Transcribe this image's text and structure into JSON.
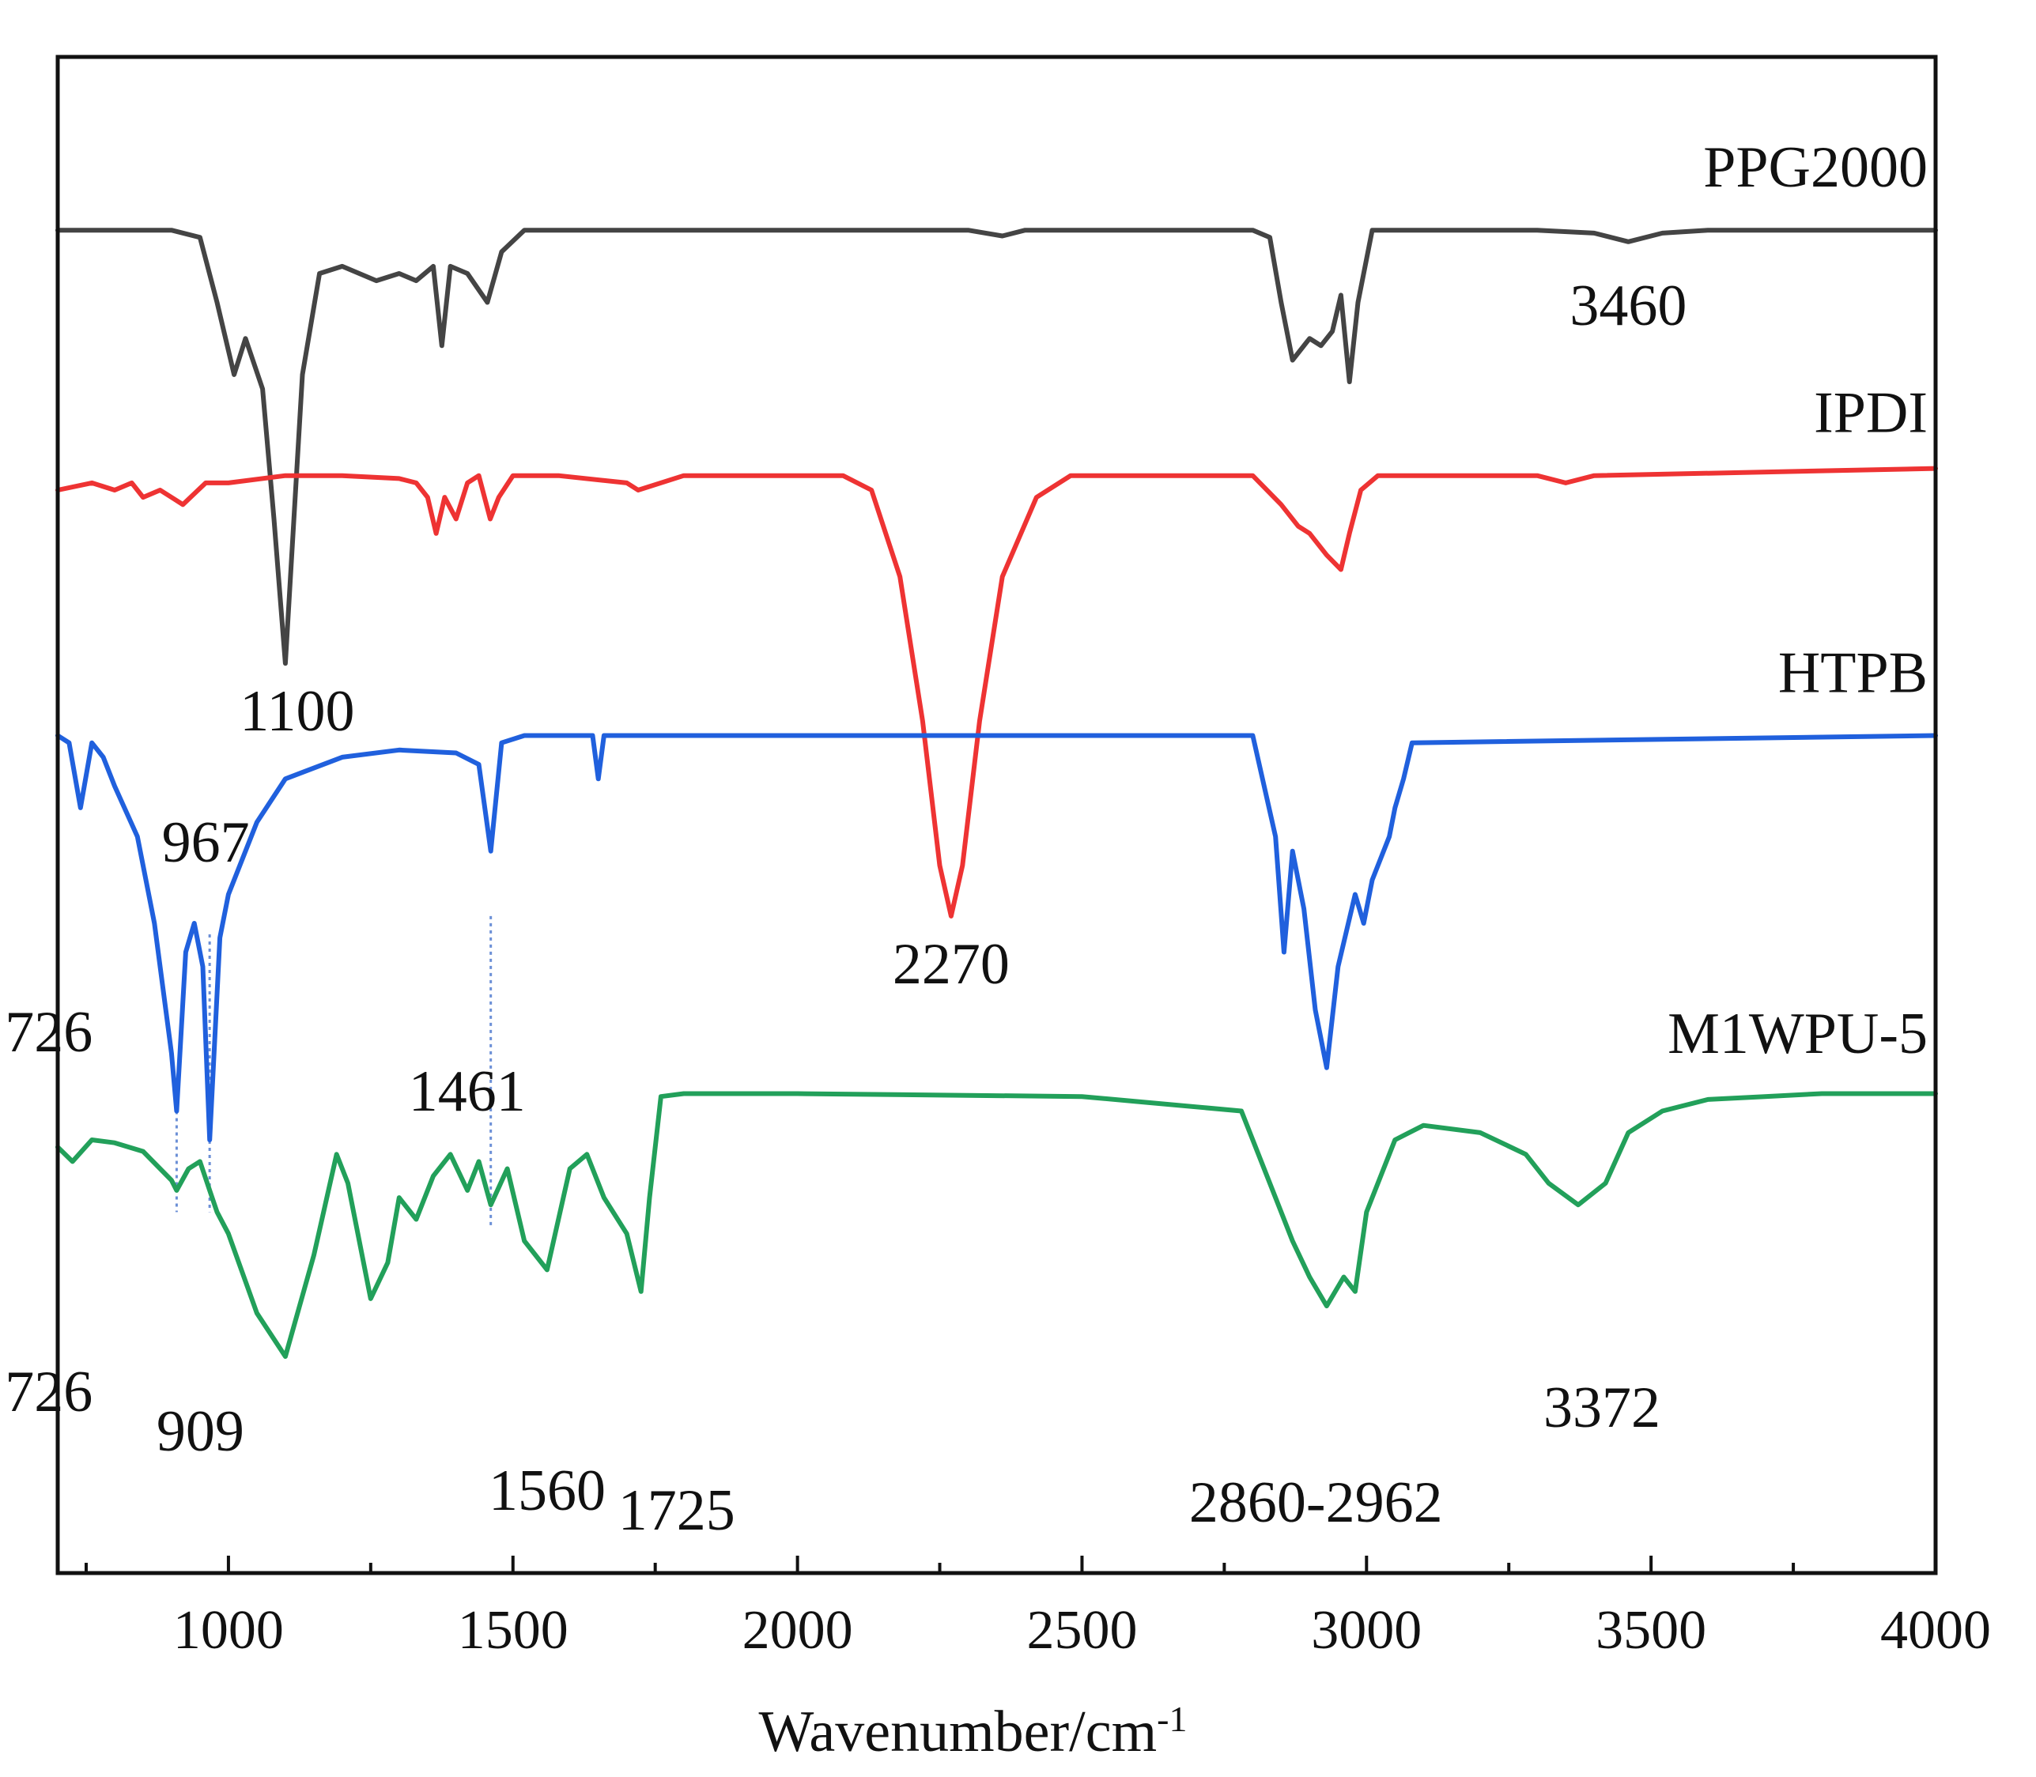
{
  "chart_data": {
    "type": "line",
    "title": "",
    "xlabel": "Wavenumber/cm",
    "xlabel_superscript": "-1",
    "ylabel": "",
    "xlim": [
      700,
      4000
    ],
    "x_ticks": [
      1000,
      1500,
      2000,
      2500,
      3000,
      3500,
      4000
    ],
    "x_tick_labels": [
      "1000",
      "1500",
      "2000",
      "2500",
      "3000",
      "3500",
      "4000"
    ],
    "grid": false,
    "y_units": "stacked transmittance (arbitrary, offset per series)",
    "series": [
      {
        "name": "PPG2000",
        "color": "#444444",
        "baseline": 9.3,
        "x": [
          700,
          900,
          950,
          980,
          1010,
          1030,
          1060,
          1080,
          1100,
          1115,
          1130,
          1160,
          1200,
          1260,
          1300,
          1330,
          1360,
          1375,
          1390,
          1420,
          1455,
          1480,
          1520,
          2300,
          2360,
          2400,
          2800,
          2830,
          2850,
          2870,
          2900,
          2920,
          2940,
          2955,
          2970,
          2985,
          3010,
          3300,
          3400,
          3460,
          3520,
          3600,
          4000
        ],
        "values": [
          9.3,
          9.3,
          9.25,
          8.8,
          8.3,
          8.55,
          8.2,
          7.3,
          6.3,
          7.3,
          8.3,
          9.0,
          9.05,
          8.95,
          9.0,
          8.95,
          9.05,
          8.5,
          9.05,
          9.0,
          8.8,
          9.15,
          9.3,
          9.3,
          9.26,
          9.3,
          9.3,
          9.25,
          8.8,
          8.4,
          8.55,
          8.5,
          8.6,
          8.85,
          8.25,
          8.8,
          9.3,
          9.3,
          9.28,
          9.22,
          9.28,
          9.3,
          9.3
        ]
      },
      {
        "name": "IPDI",
        "color": "#ee3333",
        "baseline": 7.6,
        "x": [
          700,
          760,
          800,
          830,
          850,
          880,
          900,
          920,
          960,
          1000,
          1100,
          1200,
          1300,
          1330,
          1350,
          1365,
          1380,
          1400,
          1420,
          1440,
          1460,
          1475,
          1500,
          1580,
          1700,
          1720,
          1800,
          2000,
          2080,
          2130,
          2180,
          2220,
          2250,
          2270,
          2290,
          2320,
          2360,
          2420,
          2480,
          2600,
          2800,
          2850,
          2880,
          2900,
          2930,
          2955,
          2970,
          2990,
          3020,
          3100,
          3300,
          3350,
          3400,
          4000
        ],
        "values": [
          7.5,
          7.55,
          7.5,
          7.55,
          7.45,
          7.5,
          7.45,
          7.4,
          7.55,
          7.55,
          7.6,
          7.6,
          7.58,
          7.55,
          7.45,
          7.2,
          7.45,
          7.3,
          7.55,
          7.6,
          7.3,
          7.45,
          7.6,
          7.6,
          7.55,
          7.5,
          7.6,
          7.6,
          7.6,
          7.5,
          6.9,
          5.9,
          4.9,
          4.55,
          4.9,
          5.9,
          6.9,
          7.45,
          7.6,
          7.6,
          7.6,
          7.4,
          7.25,
          7.2,
          7.05,
          6.95,
          7.2,
          7.5,
          7.6,
          7.6,
          7.6,
          7.55,
          7.6,
          7.65
        ]
      },
      {
        "name": "HTPB",
        "color": "#2060dd",
        "baseline": 5.8,
        "x": [
          700,
          720,
          740,
          760,
          780,
          800,
          840,
          870,
          900,
          909,
          925,
          940,
          955,
          967,
          985,
          1000,
          1050,
          1100,
          1200,
          1300,
          1400,
          1440,
          1461,
          1480,
          1520,
          1640,
          1650,
          1660,
          1800,
          2500,
          2800,
          2840,
          2855,
          2870,
          2890,
          2910,
          2930,
          2950,
          2980,
          2995,
          3010,
          3040,
          3050,
          3065,
          3080,
          4000
        ],
        "values": [
          5.8,
          5.75,
          5.3,
          5.75,
          5.65,
          5.45,
          5.1,
          4.5,
          3.6,
          3.2,
          4.3,
          4.5,
          4.2,
          3.0,
          4.4,
          4.7,
          5.2,
          5.5,
          5.65,
          5.7,
          5.68,
          5.6,
          5.0,
          5.75,
          5.8,
          5.8,
          5.5,
          5.8,
          5.8,
          5.8,
          5.8,
          5.1,
          4.3,
          5.0,
          4.6,
          3.9,
          3.5,
          4.2,
          4.7,
          4.5,
          4.8,
          5.1,
          5.3,
          5.5,
          5.75,
          5.8
        ]
      },
      {
        "name": "M1WPU-5",
        "color": "#22a05a",
        "baseline": 3.3,
        "x": [
          700,
          726,
          760,
          800,
          850,
          900,
          909,
          930,
          950,
          967,
          980,
          1000,
          1050,
          1100,
          1150,
          1190,
          1210,
          1250,
          1280,
          1300,
          1330,
          1360,
          1390,
          1420,
          1440,
          1461,
          1490,
          1520,
          1560,
          1600,
          1630,
          1660,
          1700,
          1725,
          1740,
          1760,
          1800,
          2000,
          2500,
          2780,
          2840,
          2870,
          2900,
          2930,
          2960,
          2980,
          3000,
          3050,
          3100,
          3200,
          3280,
          3320,
          3372,
          3420,
          3460,
          3520,
          3600,
          3700,
          3800,
          4000
        ],
        "values": [
          2.95,
          2.85,
          3.0,
          2.98,
          2.92,
          2.72,
          2.65,
          2.8,
          2.85,
          2.65,
          2.5,
          2.35,
          1.8,
          1.5,
          2.2,
          2.9,
          2.7,
          1.9,
          2.15,
          2.6,
          2.45,
          2.75,
          2.9,
          2.65,
          2.85,
          2.55,
          2.8,
          2.3,
          2.1,
          2.8,
          2.9,
          2.6,
          2.35,
          1.95,
          2.6,
          3.3,
          3.32,
          3.32,
          3.3,
          3.2,
          2.6,
          2.3,
          2.05,
          1.85,
          2.05,
          1.95,
          2.5,
          3.0,
          3.1,
          3.05,
          2.9,
          2.7,
          2.55,
          2.7,
          3.05,
          3.2,
          3.28,
          3.3,
          3.32,
          3.32
        ]
      }
    ],
    "annotations": [
      {
        "text": "3460",
        "series": "PPG2000",
        "x": 3460
      },
      {
        "text": "1100",
        "series": "PPG2000",
        "x": 1100
      },
      {
        "text": "2270",
        "series": "IPDI",
        "x": 2270
      },
      {
        "text": "967",
        "series": "HTPB",
        "x": 967
      },
      {
        "text": "726",
        "series": "HTPB",
        "x": 726
      },
      {
        "text": "1461",
        "series": "HTPB",
        "x": 1461
      },
      {
        "text": "726",
        "series": "M1WPU-5",
        "x": 726
      },
      {
        "text": "909",
        "series": "M1WPU-5",
        "x": 909
      },
      {
        "text": "1560",
        "series": "M1WPU-5",
        "x": 1560
      },
      {
        "text": "1725",
        "series": "M1WPU-5",
        "x": 1725
      },
      {
        "text": "2860-2962",
        "series": "M1WPU-5",
        "x": 2911
      },
      {
        "text": "3372",
        "series": "M1WPU-5",
        "x": 3372
      }
    ],
    "guide_lines": [
      909,
      967,
      1461
    ]
  }
}
